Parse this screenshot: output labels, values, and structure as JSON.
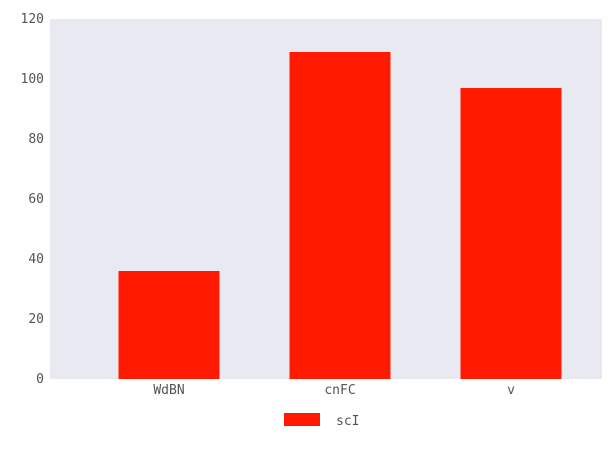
{
  "chart_data": {
    "type": "bar",
    "title": "",
    "xlabel": "",
    "ylabel": "",
    "categories": [
      "WdBN",
      "cnFC",
      "v"
    ],
    "series": [
      {
        "name": "scI",
        "values": [
          36,
          109,
          97
        ],
        "color": "#ff1a00"
      }
    ],
    "ylim": [
      0,
      120
    ],
    "yticks": [
      0,
      20,
      40,
      60,
      80,
      100,
      120
    ],
    "ytick_labels": [
      "0",
      "20",
      "40",
      "60",
      "80",
      "100",
      "120"
    ],
    "plot_background": "#e9e9f1",
    "grid": false,
    "legend_position": "bottom-center"
  }
}
